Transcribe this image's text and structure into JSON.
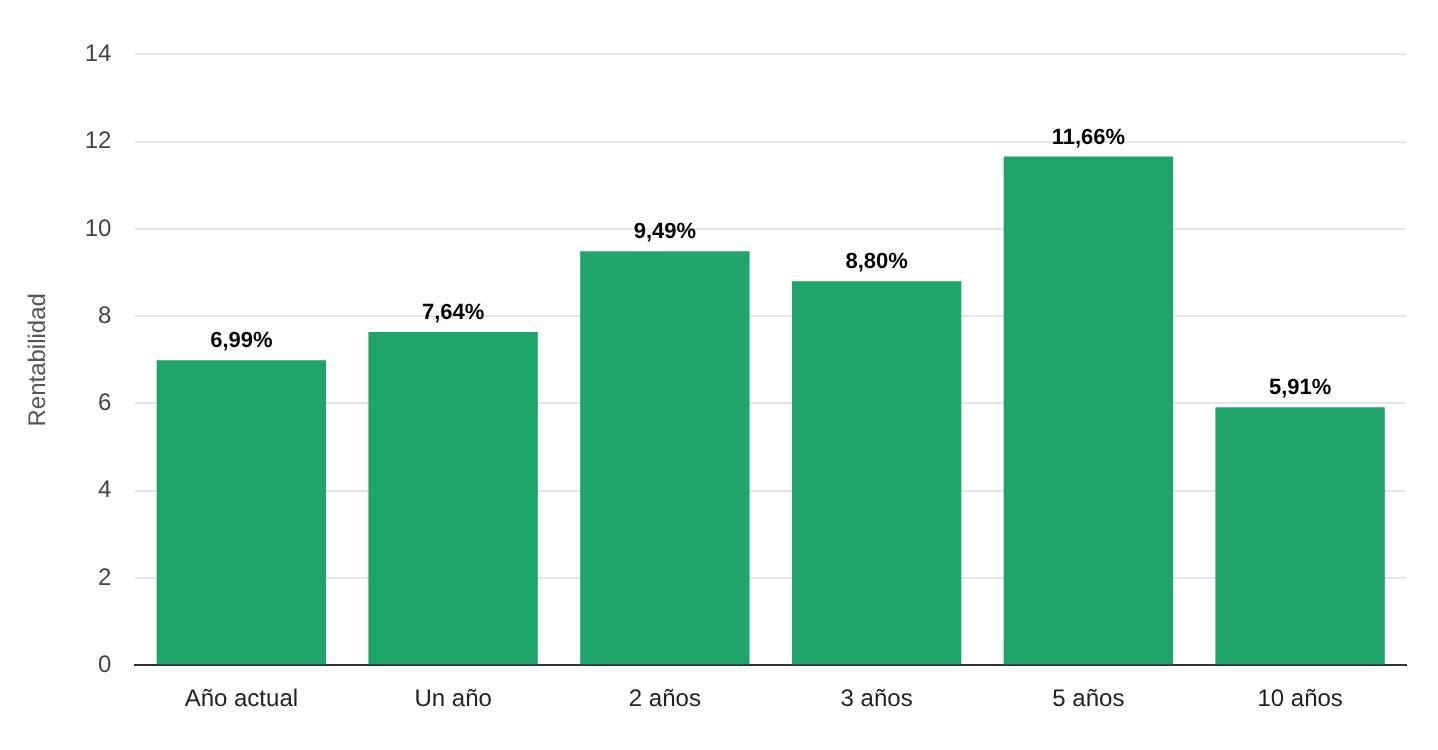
{
  "chart_data": {
    "type": "bar",
    "ylabel": "Rentabilidad",
    "categories": [
      "Año actual",
      "Un año",
      "2 años",
      "3 años",
      "5 años",
      "10 años"
    ],
    "values": [
      6.99,
      7.64,
      9.49,
      8.8,
      11.66,
      5.91
    ],
    "value_labels": [
      "6,99%",
      "7,64%",
      "9,49%",
      "8,80%",
      "11,66%",
      "5,91%"
    ],
    "color": "#1fa56a",
    "ylim": [
      0,
      14
    ],
    "yticks": [
      0,
      2,
      4,
      6,
      8,
      10,
      12,
      14
    ],
    "grid": "y",
    "legend": false
  }
}
